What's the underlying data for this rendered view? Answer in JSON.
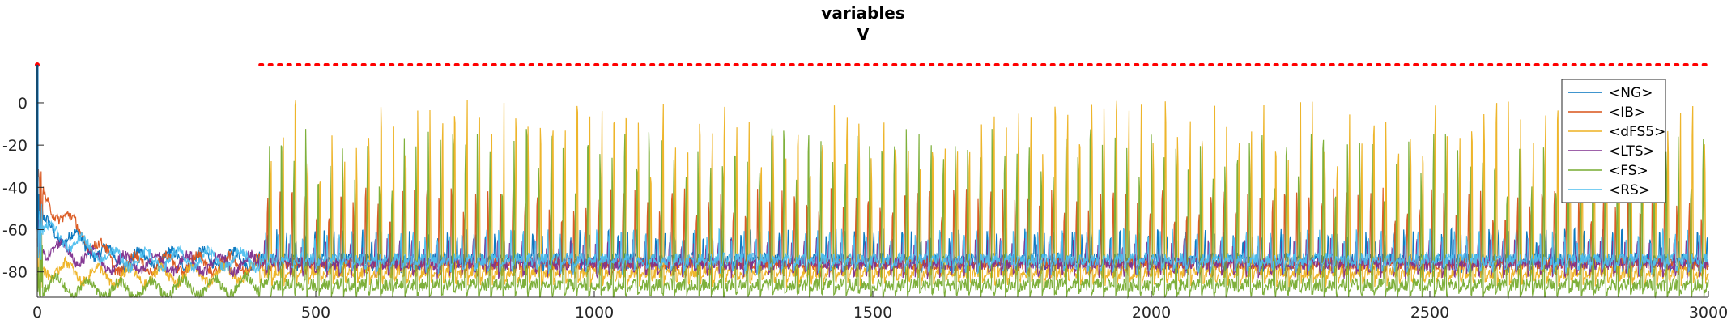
{
  "chart_data": {
    "type": "line",
    "title": "variables",
    "subtitle": "V",
    "xlabel": "",
    "ylabel": "",
    "xlim": [
      0,
      3000
    ],
    "ylim": [
      -92,
      18
    ],
    "x_ticks": [
      0,
      500,
      1000,
      1500,
      2000,
      2500,
      3000
    ],
    "y_ticks": [
      0,
      -20,
      -40,
      -60,
      -80
    ],
    "grid": false,
    "legend_position": "top-right",
    "series": [
      {
        "name": "<NG>",
        "color": "#0072BD",
        "baseline": -74,
        "spike_peak": -62,
        "spike_period": 17,
        "spike_phase": 4,
        "onset": -58
      },
      {
        "name": "<IB>",
        "color": "#D95319",
        "baseline": -76,
        "spike_peak": -46,
        "spike_period": 22,
        "spike_phase": 9,
        "onset": -45
      },
      {
        "name": "<dFS5>",
        "color": "#EDB120",
        "baseline": -80,
        "spike_peak": -12,
        "spike_period": 22,
        "spike_phase": 3,
        "onset": -74
      },
      {
        "name": "<LTS>",
        "color": "#7E2F8E",
        "baseline": -76,
        "spike_peak": -66,
        "spike_period": 22,
        "spike_phase": 14,
        "onset": -68
      },
      {
        "name": "<FS>",
        "color": "#77AC30",
        "baseline": -86,
        "spike_peak": -24,
        "spike_period": 22,
        "spike_phase": 6,
        "onset": -82
      },
      {
        "name": "<RS>",
        "color": "#4DBEEE",
        "baseline": -74,
        "spike_peak": -62,
        "spike_period": 22,
        "spike_phase": 12,
        "onset": -60
      }
    ],
    "marker_line": {
      "color": "#FF0000",
      "style": "dotted",
      "y": 18,
      "x_start": 400,
      "x_end": 3000
    },
    "marker_point": {
      "color": "#FF0000",
      "x": 0,
      "y": 18
    }
  }
}
